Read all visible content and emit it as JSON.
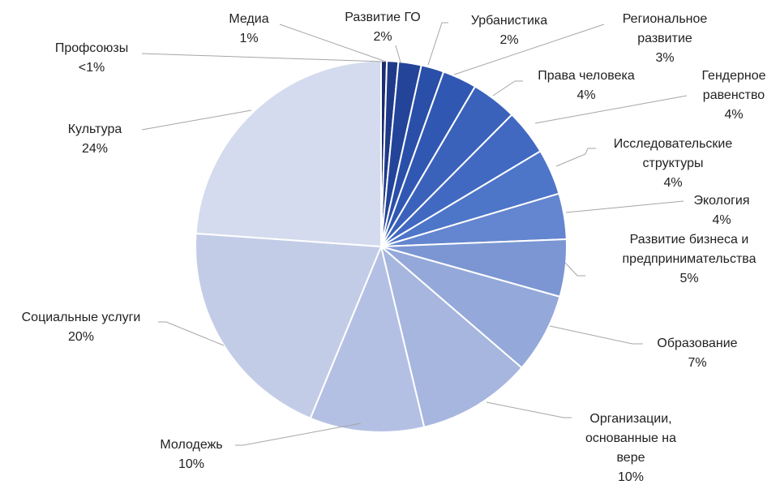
{
  "chart_data": {
    "type": "pie",
    "categories": [
      "Профсоюзы",
      "Медиа",
      "Развитие ГО",
      "Урбанистика",
      "Региональное развитие",
      "Права человека",
      "Гендерное равенство",
      "Исследовательские структуры",
      "Экология",
      "Развитие бизнеса и предпринимательства",
      "Образование",
      "Организации, основанные на вере",
      "Молодежь",
      "Социальные услуги",
      "Культура"
    ],
    "values": [
      0.5,
      1,
      2,
      2,
      3,
      4,
      4,
      4,
      4,
      5,
      7,
      10,
      10,
      20,
      24
    ],
    "value_labels": [
      "<1%",
      "1%",
      "2%",
      "2%",
      "3%",
      "4%",
      "4%",
      "4%",
      "4%",
      "5%",
      "7%",
      "10%",
      "10%",
      "20%",
      "24%"
    ],
    "colors": [
      "#1a2e6e",
      "#1f3a88",
      "#24449a",
      "#2a4fa8",
      "#3058b3",
      "#3a62bb",
      "#4169c2",
      "#4d75c8",
      "#6485cf",
      "#7b96d3",
      "#94a9da",
      "#a7b6de",
      "#b4c0e3",
      "#c3cce7",
      "#d5dbee"
    ]
  }
}
